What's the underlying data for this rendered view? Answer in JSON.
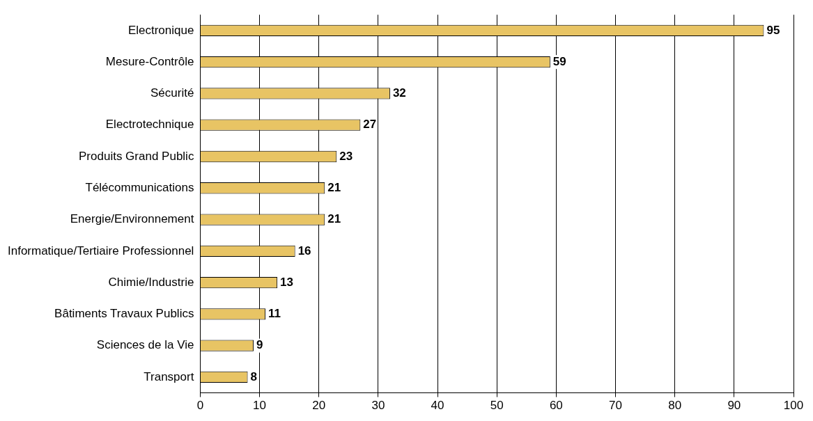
{
  "chart_data": {
    "type": "bar",
    "orientation": "horizontal",
    "categories": [
      "Electronique",
      "Mesure-Contrôle",
      "Sécurité",
      "Electrotechnique",
      "Produits Grand Public",
      "Télécommunications",
      "Energie/Environnement",
      "Informatique/Tertiaire Professionnel",
      "Chimie/Industrie",
      "Bâtiments Travaux Publics",
      "Sciences de la Vie",
      "Transport"
    ],
    "values": [
      95,
      59,
      32,
      27,
      23,
      21,
      21,
      16,
      13,
      11,
      9,
      8
    ],
    "color": "#e8c464",
    "xlim": [
      0,
      100
    ],
    "xticks": [
      0,
      10,
      20,
      30,
      40,
      50,
      60,
      70,
      80,
      90,
      100
    ],
    "grid": "x",
    "legend": false,
    "data_labels": true
  }
}
